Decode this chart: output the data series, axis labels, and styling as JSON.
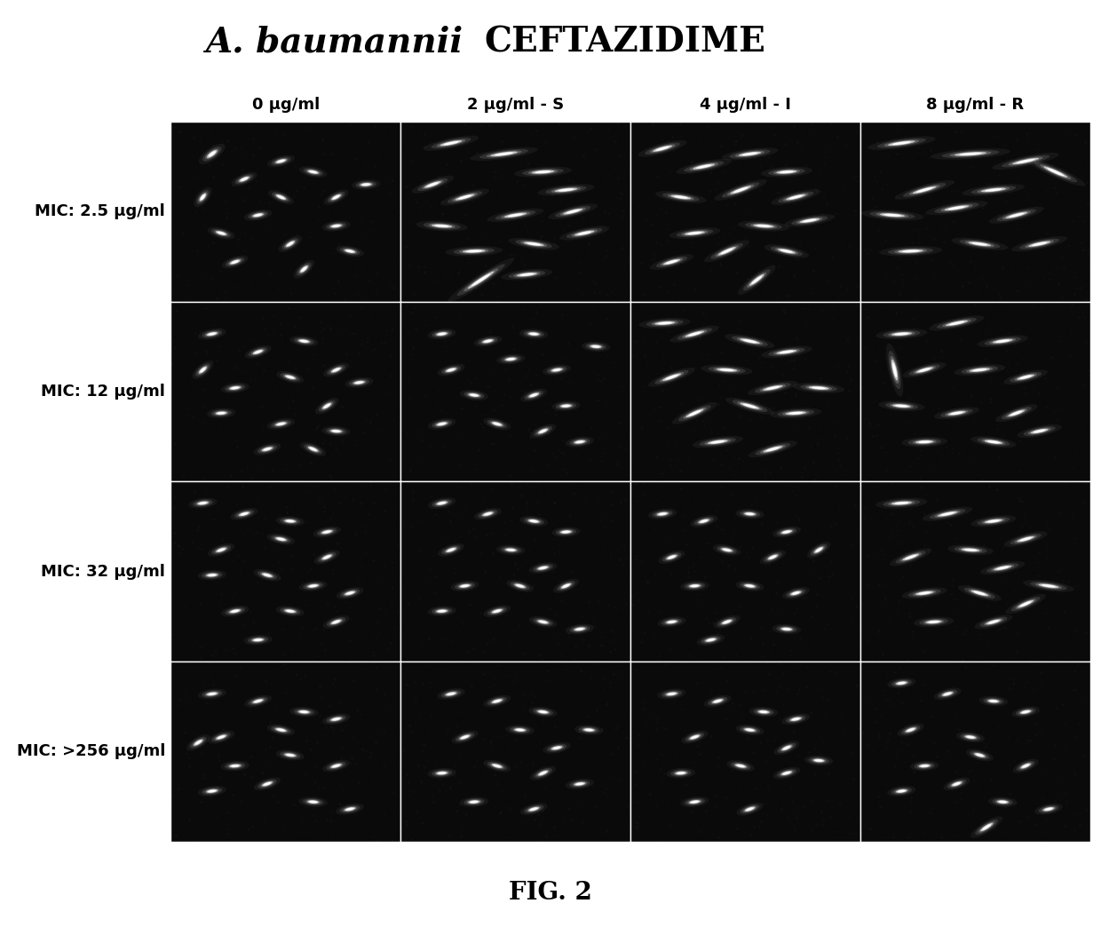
{
  "title_italic": "A. baumannii",
  "title_regular": "  CEFTAZIDIME",
  "col_labels": [
    "0 μg/ml",
    "2 μg/ml - S",
    "4 μg/ml - I",
    "8 μg/ml - R"
  ],
  "row_labels": [
    "MIC: 2.5 μg/ml",
    "MIC: 12 μg/ml",
    "MIC: 32 μg/ml",
    "MIC: >256 μg/ml"
  ],
  "fig_label": "FIG. 2",
  "background_color": "#ffffff",
  "cell_bg": "#0a0a0a",
  "bacteria_color": "#ffffff",
  "title_fontsize": 28,
  "col_label_fontsize": 13,
  "row_label_fontsize": 13,
  "fig_label_fontsize": 20,
  "bacteria_data": {
    "0_0": [
      [
        0.18,
        0.82,
        45,
        0.06,
        0.018
      ],
      [
        0.32,
        0.68,
        30,
        0.05,
        0.016
      ],
      [
        0.48,
        0.78,
        20,
        0.05,
        0.016
      ],
      [
        0.62,
        0.72,
        -15,
        0.05,
        0.016
      ],
      [
        0.72,
        0.58,
        35,
        0.05,
        0.016
      ],
      [
        0.38,
        0.48,
        15,
        0.05,
        0.016
      ],
      [
        0.22,
        0.38,
        -20,
        0.05,
        0.016
      ],
      [
        0.52,
        0.32,
        40,
        0.05,
        0.016
      ],
      [
        0.72,
        0.42,
        10,
        0.05,
        0.016
      ],
      [
        0.14,
        0.58,
        60,
        0.05,
        0.016
      ],
      [
        0.48,
        0.58,
        -30,
        0.05,
        0.016
      ],
      [
        0.28,
        0.22,
        25,
        0.05,
        0.016
      ],
      [
        0.78,
        0.28,
        -15,
        0.05,
        0.016
      ],
      [
        0.58,
        0.18,
        50,
        0.05,
        0.016
      ],
      [
        0.85,
        0.65,
        5,
        0.05,
        0.016
      ]
    ],
    "0_1": [
      [
        0.22,
        0.88,
        15,
        0.1,
        0.016
      ],
      [
        0.45,
        0.82,
        10,
        0.12,
        0.016
      ],
      [
        0.62,
        0.72,
        5,
        0.1,
        0.016
      ],
      [
        0.28,
        0.58,
        20,
        0.09,
        0.016
      ],
      [
        0.72,
        0.62,
        8,
        0.1,
        0.016
      ],
      [
        0.18,
        0.42,
        -5,
        0.09,
        0.016
      ],
      [
        0.5,
        0.48,
        12,
        0.1,
        0.016
      ],
      [
        0.75,
        0.5,
        18,
        0.09,
        0.016
      ],
      [
        0.32,
        0.28,
        3,
        0.1,
        0.016
      ],
      [
        0.58,
        0.32,
        -10,
        0.09,
        0.016
      ],
      [
        0.8,
        0.38,
        15,
        0.09,
        0.016
      ],
      [
        0.14,
        0.65,
        25,
        0.08,
        0.016
      ],
      [
        0.55,
        0.15,
        8,
        0.09,
        0.016
      ],
      [
        0.35,
        0.12,
        40,
        0.15,
        0.016
      ]
    ],
    "0_2": [
      [
        0.14,
        0.85,
        20,
        0.09,
        0.016
      ],
      [
        0.32,
        0.75,
        15,
        0.1,
        0.016
      ],
      [
        0.52,
        0.82,
        10,
        0.1,
        0.016
      ],
      [
        0.68,
        0.72,
        5,
        0.09,
        0.016
      ],
      [
        0.22,
        0.58,
        -10,
        0.09,
        0.016
      ],
      [
        0.48,
        0.62,
        25,
        0.1,
        0.016
      ],
      [
        0.72,
        0.58,
        18,
        0.09,
        0.016
      ],
      [
        0.28,
        0.38,
        8,
        0.09,
        0.016
      ],
      [
        0.58,
        0.42,
        -5,
        0.09,
        0.016
      ],
      [
        0.78,
        0.45,
        12,
        0.09,
        0.016
      ],
      [
        0.42,
        0.28,
        30,
        0.09,
        0.016
      ],
      [
        0.68,
        0.28,
        -15,
        0.08,
        0.016
      ],
      [
        0.18,
        0.22,
        20,
        0.08,
        0.016
      ],
      [
        0.55,
        0.12,
        45,
        0.09,
        0.016
      ]
    ],
    "0_3": [
      [
        0.18,
        0.88,
        10,
        0.12,
        0.016
      ],
      [
        0.48,
        0.82,
        5,
        0.14,
        0.016
      ],
      [
        0.72,
        0.78,
        15,
        0.12,
        0.016
      ],
      [
        0.28,
        0.62,
        20,
        0.11,
        0.016
      ],
      [
        0.58,
        0.62,
        8,
        0.11,
        0.016
      ],
      [
        0.14,
        0.48,
        -5,
        0.11,
        0.016
      ],
      [
        0.42,
        0.52,
        12,
        0.11,
        0.016
      ],
      [
        0.68,
        0.48,
        18,
        0.1,
        0.016
      ],
      [
        0.22,
        0.28,
        3,
        0.11,
        0.016
      ],
      [
        0.52,
        0.32,
        -10,
        0.1,
        0.016
      ],
      [
        0.78,
        0.32,
        15,
        0.1,
        0.016
      ],
      [
        0.85,
        0.72,
        -30,
        0.12,
        0.016
      ]
    ],
    "1_0": [
      [
        0.18,
        0.82,
        15,
        0.05,
        0.016
      ],
      [
        0.38,
        0.72,
        25,
        0.05,
        0.016
      ],
      [
        0.58,
        0.78,
        -10,
        0.05,
        0.016
      ],
      [
        0.72,
        0.62,
        30,
        0.05,
        0.016
      ],
      [
        0.28,
        0.52,
        10,
        0.05,
        0.016
      ],
      [
        0.52,
        0.58,
        -20,
        0.05,
        0.016
      ],
      [
        0.68,
        0.42,
        40,
        0.05,
        0.016
      ],
      [
        0.22,
        0.38,
        5,
        0.05,
        0.016
      ],
      [
        0.48,
        0.32,
        15,
        0.05,
        0.016
      ],
      [
        0.72,
        0.28,
        -5,
        0.05,
        0.016
      ],
      [
        0.14,
        0.62,
        50,
        0.05,
        0.016
      ],
      [
        0.42,
        0.18,
        20,
        0.05,
        0.016
      ],
      [
        0.62,
        0.18,
        -30,
        0.05,
        0.016
      ],
      [
        0.82,
        0.55,
        10,
        0.05,
        0.016
      ]
    ],
    "1_1": [
      [
        0.18,
        0.82,
        10,
        0.05,
        0.016
      ],
      [
        0.38,
        0.78,
        15,
        0.05,
        0.016
      ],
      [
        0.58,
        0.82,
        -5,
        0.05,
        0.016
      ],
      [
        0.22,
        0.62,
        20,
        0.05,
        0.016
      ],
      [
        0.48,
        0.68,
        8,
        0.05,
        0.016
      ],
      [
        0.68,
        0.62,
        12,
        0.05,
        0.016
      ],
      [
        0.32,
        0.48,
        -10,
        0.05,
        0.016
      ],
      [
        0.58,
        0.48,
        25,
        0.05,
        0.016
      ],
      [
        0.72,
        0.42,
        5,
        0.05,
        0.016
      ],
      [
        0.18,
        0.32,
        15,
        0.05,
        0.016
      ],
      [
        0.42,
        0.32,
        -20,
        0.05,
        0.016
      ],
      [
        0.62,
        0.28,
        30,
        0.05,
        0.016
      ],
      [
        0.78,
        0.22,
        10,
        0.05,
        0.016
      ],
      [
        0.85,
        0.75,
        -5,
        0.05,
        0.016
      ]
    ],
    "1_2": [
      [
        0.28,
        0.82,
        20,
        0.09,
        0.016
      ],
      [
        0.52,
        0.78,
        -15,
        0.09,
        0.016
      ],
      [
        0.68,
        0.72,
        10,
        0.09,
        0.016
      ],
      [
        0.18,
        0.58,
        25,
        0.09,
        0.016
      ],
      [
        0.42,
        0.62,
        -5,
        0.09,
        0.016
      ],
      [
        0.62,
        0.52,
        15,
        0.09,
        0.016
      ],
      [
        0.28,
        0.38,
        30,
        0.09,
        0.016
      ],
      [
        0.52,
        0.42,
        -20,
        0.09,
        0.016
      ],
      [
        0.72,
        0.38,
        5,
        0.09,
        0.016
      ],
      [
        0.38,
        0.22,
        10,
        0.09,
        0.016
      ],
      [
        0.62,
        0.18,
        20,
        0.09,
        0.016
      ],
      [
        0.82,
        0.52,
        -5,
        0.09,
        0.016
      ],
      [
        0.15,
        0.88,
        5,
        0.09,
        0.016
      ]
    ],
    "1_3": [
      [
        0.18,
        0.82,
        5,
        0.09,
        0.016
      ],
      [
        0.15,
        0.62,
        -80,
        0.12,
        0.016
      ],
      [
        0.42,
        0.88,
        15,
        0.1,
        0.016
      ],
      [
        0.62,
        0.78,
        10,
        0.09,
        0.016
      ],
      [
        0.28,
        0.62,
        20,
        0.08,
        0.016
      ],
      [
        0.52,
        0.62,
        8,
        0.09,
        0.016
      ],
      [
        0.72,
        0.58,
        18,
        0.08,
        0.016
      ],
      [
        0.18,
        0.42,
        -5,
        0.08,
        0.016
      ],
      [
        0.42,
        0.38,
        12,
        0.08,
        0.016
      ],
      [
        0.68,
        0.38,
        25,
        0.08,
        0.016
      ],
      [
        0.28,
        0.22,
        3,
        0.08,
        0.016
      ],
      [
        0.58,
        0.22,
        -10,
        0.08,
        0.016
      ],
      [
        0.78,
        0.28,
        15,
        0.08,
        0.016
      ]
    ],
    "2_0": [
      [
        0.14,
        0.88,
        10,
        0.05,
        0.016
      ],
      [
        0.32,
        0.82,
        20,
        0.05,
        0.016
      ],
      [
        0.52,
        0.78,
        -5,
        0.05,
        0.016
      ],
      [
        0.68,
        0.72,
        15,
        0.05,
        0.016
      ],
      [
        0.22,
        0.62,
        25,
        0.05,
        0.016
      ],
      [
        0.48,
        0.68,
        -15,
        0.05,
        0.016
      ],
      [
        0.68,
        0.58,
        30,
        0.05,
        0.016
      ],
      [
        0.18,
        0.48,
        5,
        0.05,
        0.016
      ],
      [
        0.42,
        0.48,
        -20,
        0.05,
        0.016
      ],
      [
        0.62,
        0.42,
        10,
        0.05,
        0.016
      ],
      [
        0.78,
        0.38,
        20,
        0.05,
        0.016
      ],
      [
        0.28,
        0.28,
        15,
        0.05,
        0.016
      ],
      [
        0.52,
        0.28,
        -10,
        0.05,
        0.016
      ],
      [
        0.72,
        0.22,
        25,
        0.05,
        0.016
      ],
      [
        0.38,
        0.12,
        5,
        0.05,
        0.016
      ]
    ],
    "2_1": [
      [
        0.18,
        0.88,
        15,
        0.05,
        0.016
      ],
      [
        0.38,
        0.82,
        20,
        0.05,
        0.016
      ],
      [
        0.58,
        0.78,
        -10,
        0.05,
        0.016
      ],
      [
        0.72,
        0.72,
        5,
        0.05,
        0.016
      ],
      [
        0.22,
        0.62,
        25,
        0.05,
        0.016
      ],
      [
        0.48,
        0.62,
        -5,
        0.05,
        0.016
      ],
      [
        0.62,
        0.52,
        15,
        0.05,
        0.016
      ],
      [
        0.28,
        0.42,
        10,
        0.05,
        0.016
      ],
      [
        0.52,
        0.42,
        -20,
        0.05,
        0.016
      ],
      [
        0.72,
        0.42,
        30,
        0.05,
        0.016
      ],
      [
        0.18,
        0.28,
        5,
        0.05,
        0.016
      ],
      [
        0.42,
        0.28,
        20,
        0.05,
        0.016
      ],
      [
        0.62,
        0.22,
        -15,
        0.05,
        0.016
      ],
      [
        0.78,
        0.18,
        10,
        0.05,
        0.016
      ]
    ],
    "2_2": [
      [
        0.14,
        0.82,
        10,
        0.05,
        0.016
      ],
      [
        0.32,
        0.78,
        20,
        0.05,
        0.016
      ],
      [
        0.52,
        0.82,
        -5,
        0.05,
        0.016
      ],
      [
        0.68,
        0.72,
        15,
        0.05,
        0.016
      ],
      [
        0.18,
        0.58,
        25,
        0.05,
        0.016
      ],
      [
        0.42,
        0.62,
        -15,
        0.05,
        0.016
      ],
      [
        0.62,
        0.58,
        30,
        0.05,
        0.016
      ],
      [
        0.28,
        0.42,
        5,
        0.05,
        0.016
      ],
      [
        0.52,
        0.42,
        -10,
        0.05,
        0.016
      ],
      [
        0.72,
        0.38,
        20,
        0.05,
        0.016
      ],
      [
        0.18,
        0.22,
        10,
        0.05,
        0.016
      ],
      [
        0.42,
        0.22,
        25,
        0.05,
        0.016
      ],
      [
        0.68,
        0.18,
        -5,
        0.05,
        0.016
      ],
      [
        0.82,
        0.62,
        40,
        0.05,
        0.016
      ],
      [
        0.35,
        0.12,
        15,
        0.05,
        0.016
      ]
    ],
    "2_3": [
      [
        0.18,
        0.88,
        5,
        0.09,
        0.016
      ],
      [
        0.38,
        0.82,
        15,
        0.09,
        0.016
      ],
      [
        0.58,
        0.78,
        10,
        0.08,
        0.016
      ],
      [
        0.72,
        0.68,
        20,
        0.08,
        0.016
      ],
      [
        0.22,
        0.58,
        25,
        0.08,
        0.016
      ],
      [
        0.48,
        0.62,
        -5,
        0.08,
        0.016
      ],
      [
        0.62,
        0.52,
        15,
        0.08,
        0.016
      ],
      [
        0.28,
        0.38,
        10,
        0.08,
        0.016
      ],
      [
        0.52,
        0.38,
        -20,
        0.08,
        0.016
      ],
      [
        0.72,
        0.32,
        30,
        0.08,
        0.016
      ],
      [
        0.32,
        0.22,
        5,
        0.07,
        0.016
      ],
      [
        0.58,
        0.22,
        20,
        0.07,
        0.016
      ],
      [
        0.82,
        0.42,
        -10,
        0.09,
        0.016
      ]
    ],
    "3_0": [
      [
        0.18,
        0.82,
        10,
        0.05,
        0.016
      ],
      [
        0.38,
        0.78,
        20,
        0.05,
        0.016
      ],
      [
        0.58,
        0.72,
        -5,
        0.05,
        0.016
      ],
      [
        0.72,
        0.68,
        15,
        0.05,
        0.016
      ],
      [
        0.22,
        0.58,
        25,
        0.05,
        0.016
      ],
      [
        0.48,
        0.62,
        -15,
        0.05,
        0.016
      ],
      [
        0.28,
        0.42,
        5,
        0.05,
        0.016
      ],
      [
        0.52,
        0.48,
        -10,
        0.05,
        0.016
      ],
      [
        0.72,
        0.42,
        20,
        0.05,
        0.016
      ],
      [
        0.18,
        0.28,
        10,
        0.05,
        0.016
      ],
      [
        0.42,
        0.32,
        25,
        0.05,
        0.016
      ],
      [
        0.62,
        0.22,
        -5,
        0.05,
        0.016
      ],
      [
        0.78,
        0.18,
        15,
        0.05,
        0.016
      ],
      [
        0.12,
        0.55,
        40,
        0.05,
        0.016
      ]
    ],
    "3_1": [
      [
        0.22,
        0.82,
        15,
        0.05,
        0.016
      ],
      [
        0.42,
        0.78,
        20,
        0.05,
        0.016
      ],
      [
        0.62,
        0.72,
        -10,
        0.05,
        0.016
      ],
      [
        0.28,
        0.58,
        25,
        0.05,
        0.016
      ],
      [
        0.52,
        0.62,
        -5,
        0.05,
        0.016
      ],
      [
        0.68,
        0.52,
        15,
        0.05,
        0.016
      ],
      [
        0.18,
        0.38,
        5,
        0.05,
        0.016
      ],
      [
        0.42,
        0.42,
        -20,
        0.05,
        0.016
      ],
      [
        0.62,
        0.38,
        30,
        0.05,
        0.016
      ],
      [
        0.78,
        0.32,
        10,
        0.05,
        0.016
      ],
      [
        0.32,
        0.22,
        5,
        0.05,
        0.016
      ],
      [
        0.58,
        0.18,
        20,
        0.05,
        0.016
      ],
      [
        0.82,
        0.62,
        -5,
        0.05,
        0.016
      ]
    ],
    "3_2": [
      [
        0.18,
        0.82,
        10,
        0.05,
        0.016
      ],
      [
        0.38,
        0.78,
        20,
        0.05,
        0.016
      ],
      [
        0.58,
        0.72,
        -5,
        0.05,
        0.016
      ],
      [
        0.72,
        0.68,
        15,
        0.05,
        0.016
      ],
      [
        0.28,
        0.58,
        25,
        0.05,
        0.016
      ],
      [
        0.52,
        0.62,
        -10,
        0.05,
        0.016
      ],
      [
        0.68,
        0.52,
        30,
        0.05,
        0.016
      ],
      [
        0.22,
        0.38,
        5,
        0.05,
        0.016
      ],
      [
        0.48,
        0.42,
        -15,
        0.05,
        0.016
      ],
      [
        0.68,
        0.38,
        20,
        0.05,
        0.016
      ],
      [
        0.28,
        0.22,
        10,
        0.05,
        0.016
      ],
      [
        0.52,
        0.18,
        25,
        0.05,
        0.016
      ],
      [
        0.82,
        0.45,
        -5,
        0.05,
        0.016
      ]
    ],
    "3_3": [
      [
        0.18,
        0.88,
        10,
        0.05,
        0.016
      ],
      [
        0.38,
        0.82,
        20,
        0.05,
        0.016
      ],
      [
        0.58,
        0.78,
        -5,
        0.05,
        0.016
      ],
      [
        0.72,
        0.72,
        15,
        0.05,
        0.016
      ],
      [
        0.22,
        0.62,
        25,
        0.05,
        0.016
      ],
      [
        0.48,
        0.58,
        -10,
        0.05,
        0.016
      ],
      [
        0.28,
        0.42,
        5,
        0.05,
        0.016
      ],
      [
        0.52,
        0.48,
        -20,
        0.05,
        0.016
      ],
      [
        0.72,
        0.42,
        30,
        0.05,
        0.016
      ],
      [
        0.18,
        0.28,
        10,
        0.05,
        0.016
      ],
      [
        0.42,
        0.32,
        25,
        0.05,
        0.016
      ],
      [
        0.62,
        0.22,
        -5,
        0.05,
        0.016
      ],
      [
        0.82,
        0.18,
        15,
        0.05,
        0.016
      ],
      [
        0.55,
        0.08,
        40,
        0.07,
        0.016
      ]
    ]
  }
}
